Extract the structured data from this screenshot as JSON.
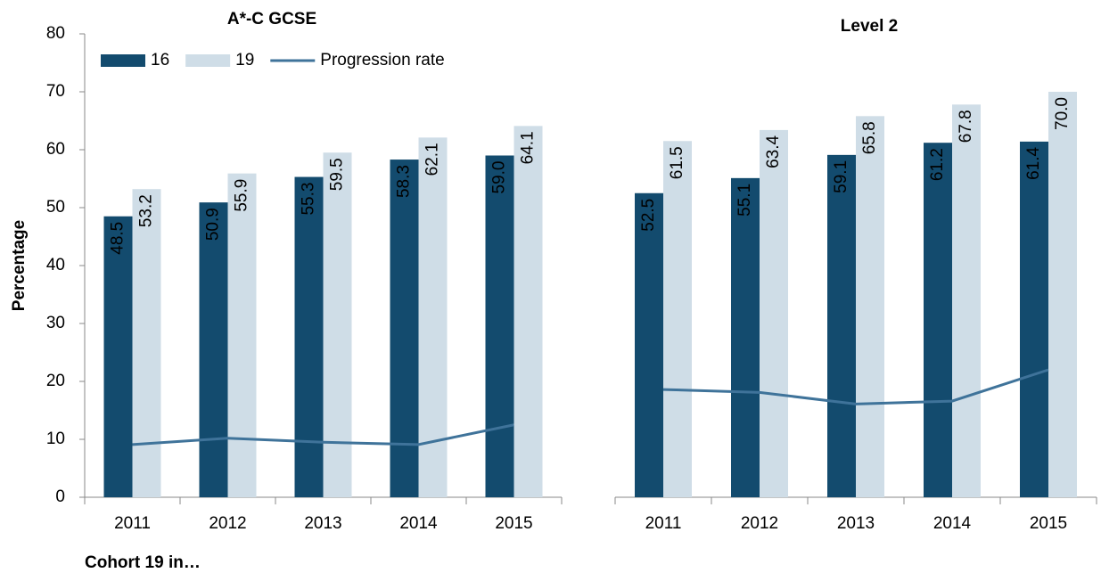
{
  "chart_data": [
    {
      "type": "bar",
      "title": "A*-C GCSE",
      "y_label": "Percentage",
      "x_label": "Cohort 19 in…",
      "categories": [
        "2011",
        "2012",
        "2013",
        "2014",
        "2015"
      ],
      "series": [
        {
          "name": "16",
          "color": "#134b6e",
          "values": [
            48.5,
            50.9,
            55.3,
            58.3,
            59.0
          ],
          "value_labels": [
            "48.5",
            "50.9",
            "55.3",
            "58.3",
            "59.0"
          ]
        },
        {
          "name": "19",
          "color": "#cfdde7",
          "values": [
            53.2,
            55.9,
            59.5,
            62.1,
            64.1
          ],
          "value_labels": [
            "53.2",
            "55.9",
            "59.5",
            "62.1",
            "64.1"
          ]
        },
        {
          "name": "Progression rate",
          "color": "#3f739a",
          "type": "line",
          "values": [
            9.1,
            10.2,
            9.5,
            9.1,
            12.5
          ]
        }
      ],
      "ylim": [
        0,
        80
      ],
      "yticks": [
        0,
        10,
        20,
        30,
        40,
        50,
        60,
        70,
        80
      ],
      "legend": "top-left"
    },
    {
      "type": "bar",
      "title": "Level 2",
      "categories": [
        "2011",
        "2012",
        "2013",
        "2014",
        "2015"
      ],
      "series": [
        {
          "color": "#134b6e",
          "values": [
            52.5,
            55.1,
            59.1,
            61.2,
            61.4
          ],
          "value_labels": [
            "52.5",
            "55.1",
            "59.1",
            "61.2",
            "61.4"
          ]
        },
        {
          "color": "#cfdde7",
          "values": [
            61.5,
            63.4,
            65.8,
            67.8,
            70.0
          ],
          "value_labels": [
            "61.5",
            "63.4",
            "65.8",
            "67.8",
            "70.0"
          ]
        },
        {
          "color": "#3f739a",
          "type": "line",
          "values": [
            18.6,
            18.1,
            16.1,
            16.6,
            22.0
          ]
        }
      ],
      "ylim": [
        0,
        80
      ]
    }
  ]
}
